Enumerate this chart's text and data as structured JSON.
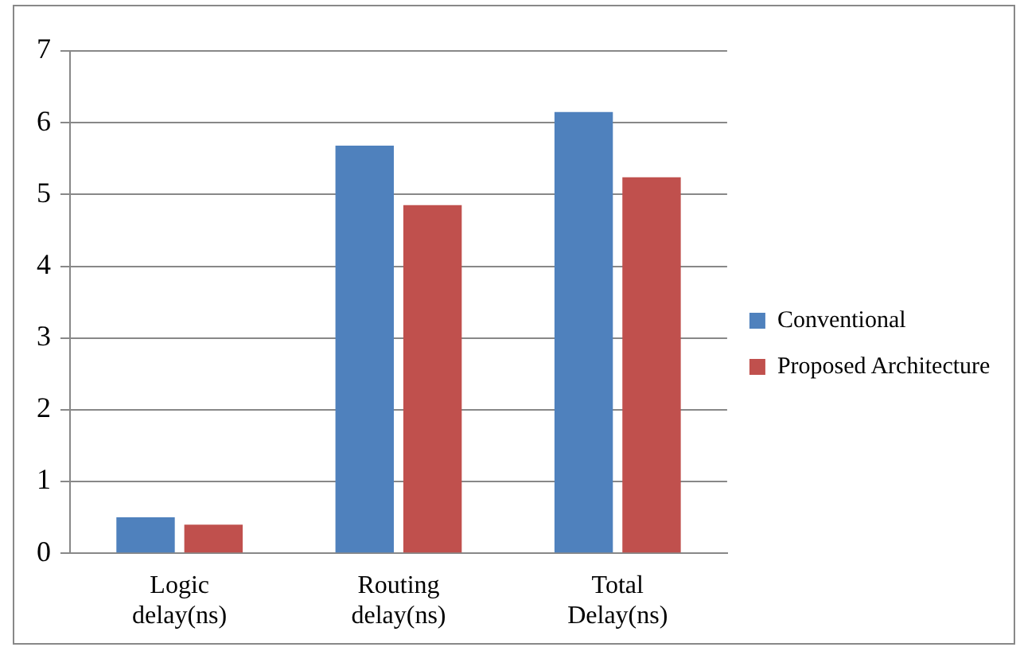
{
  "chart_data": {
    "type": "bar",
    "categories": [
      "Logic delay(ns)",
      "Routing delay(ns)",
      "Total Delay(ns)"
    ],
    "series": [
      {
        "name": "Conventional",
        "color": "#4f81bd",
        "values": [
          0.5,
          5.68,
          6.15
        ]
      },
      {
        "name": "Proposed Architecture",
        "color": "#c0504d",
        "values": [
          0.4,
          4.85,
          5.24
        ]
      }
    ],
    "ylim": [
      0,
      7
    ],
    "yticks": [
      0,
      1,
      2,
      3,
      4,
      5,
      6,
      7
    ],
    "grid": "y",
    "legend": "right"
  }
}
